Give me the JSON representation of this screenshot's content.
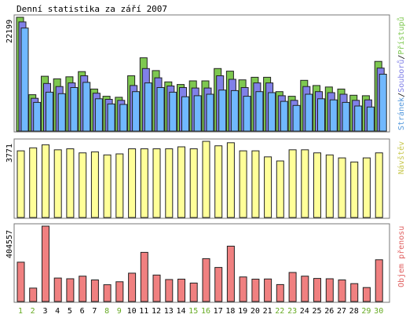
{
  "chart_data": {
    "type": "bar",
    "title": "Denní statistika za září 2007",
    "categories": [
      "1",
      "2",
      "3",
      "4",
      "5",
      "6",
      "7",
      "8",
      "9",
      "10",
      "11",
      "12",
      "13",
      "14",
      "15",
      "16",
      "17",
      "18",
      "19",
      "20",
      "21",
      "22",
      "23",
      "24",
      "25",
      "26",
      "27",
      "28",
      "29",
      "30"
    ],
    "weekend_days": [
      "1",
      "2",
      "8",
      "9",
      "15",
      "16",
      "22",
      "23",
      "29",
      "30"
    ],
    "colors": {
      "pristupu": "#7ec850",
      "souboru": "#8080e8",
      "stranek": "#70b8ff",
      "navstev": "#ffff99",
      "objem": "#f08080",
      "weekday_label": "#000000",
      "weekend_label": "#66aa22"
    },
    "panels": [
      {
        "id": "top",
        "ymax_label": "22199",
        "ymax": 22199,
        "side_label_parts": [
          {
            "text": "Stránek",
            "color": "#5599dd"
          },
          {
            "text": "/",
            "color": "#000000"
          },
          {
            "text": "Souborů",
            "color": "#8080e8"
          },
          {
            "text": "/",
            "color": "#000000"
          },
          {
            "text": "Přístupů",
            "color": "#7ec850"
          }
        ],
        "series": [
          {
            "name": "Přístupů",
            "values": [
              22199,
              7100,
              10700,
              10200,
              10600,
              11600,
              8200,
              6800,
              6600,
              10800,
              14300,
              11800,
              9600,
              9100,
              9800,
              9800,
              12200,
              11700,
              10000,
              10500,
              10500,
              7700,
              6800,
              9900,
              8900,
              8600,
              8200,
              7000,
              6900,
              13600
            ]
          },
          {
            "name": "Souborů",
            "values": [
              21300,
              6400,
              9300,
              8700,
              9400,
              10800,
              7400,
              6200,
              6000,
              8900,
              12200,
              10400,
              8800,
              8500,
              8400,
              8400,
              10800,
              10100,
              8500,
              9400,
              9400,
              6900,
              6000,
              8700,
              7700,
              7500,
              7200,
              6000,
              6100,
              12300
            ]
          },
          {
            "name": "Stránek",
            "values": [
              20100,
              5600,
              7600,
              7300,
              8500,
              9500,
              6300,
              5300,
              5200,
              7700,
              9400,
              8500,
              7600,
              6700,
              6900,
              7200,
              8000,
              7900,
              6800,
              7700,
              7500,
              5800,
              5000,
              7200,
              6300,
              6100,
              5600,
              4900,
              4700,
              11100
            ]
          }
        ]
      },
      {
        "id": "middle",
        "ymax_label": "3771",
        "ymax": 3771,
        "side_label_parts": [
          {
            "text": "Návštěv",
            "color": "#c8c850"
          }
        ],
        "series": [
          {
            "name": "Návštěv",
            "values": [
              3300,
              3450,
              3600,
              3350,
              3400,
              3200,
              3250,
              3100,
              3150,
              3400,
              3400,
              3400,
              3400,
              3500,
              3400,
              3771,
              3550,
              3700,
              3300,
              3300,
              3000,
              2800,
              3350,
              3350,
              3200,
              3100,
              2950,
              2750,
              2950,
              3200
            ]
          }
        ]
      },
      {
        "id": "bottom",
        "ymax_label": "404557",
        "ymax": 404557,
        "side_label_parts": [
          {
            "text": "Objem přenosu",
            "color": "#e06060"
          }
        ],
        "series": [
          {
            "name": "Objem přenosu",
            "values": [
              211000,
              72000,
              404557,
              126000,
              122000,
              136000,
              116000,
              90000,
              106000,
              152000,
              264000,
              142000,
              118000,
              120000,
              99000,
              230000,
              183000,
              297000,
              132000,
              120000,
              121000,
              91000,
              156000,
              136000,
              124000,
              122000,
              116000,
              96000,
              75000,
              224000
            ]
          }
        ]
      }
    ]
  }
}
